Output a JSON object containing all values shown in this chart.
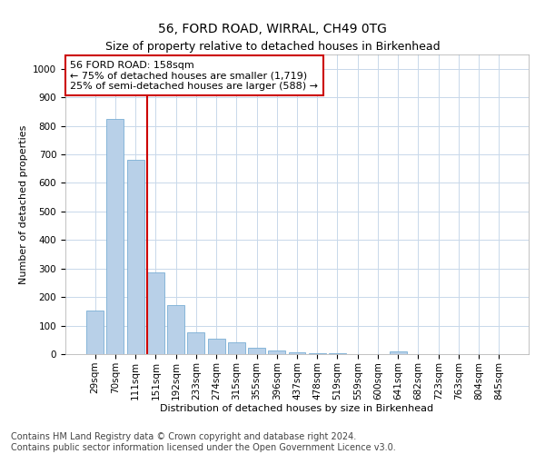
{
  "title": "56, FORD ROAD, WIRRAL, CH49 0TG",
  "subtitle": "Size of property relative to detached houses in Birkenhead",
  "xlabel": "Distribution of detached houses by size in Birkenhead",
  "ylabel": "Number of detached properties",
  "bin_labels": [
    "29sqm",
    "70sqm",
    "111sqm",
    "151sqm",
    "192sqm",
    "233sqm",
    "274sqm",
    "315sqm",
    "355sqm",
    "396sqm",
    "437sqm",
    "478sqm",
    "519sqm",
    "559sqm",
    "600sqm",
    "641sqm",
    "682sqm",
    "723sqm",
    "763sqm",
    "804sqm",
    "845sqm"
  ],
  "bar_values": [
    152,
    825,
    680,
    285,
    173,
    77,
    53,
    42,
    23,
    13,
    6,
    4,
    2,
    1,
    0,
    11,
    0,
    0,
    0,
    0,
    0
  ],
  "bar_color": "#b8d0e8",
  "bar_edge_color": "#7aaed4",
  "vline_x_index": 3,
  "vline_color": "#cc0000",
  "annotation_line1": "56 FORD ROAD: 158sqm",
  "annotation_line2": "← 75% of detached houses are smaller (1,719)",
  "annotation_line3": "25% of semi-detached houses are larger (588) →",
  "annotation_box_color": "#ffffff",
  "annotation_box_edge": "#cc0000",
  "ylim": [
    0,
    1050
  ],
  "yticks": [
    0,
    100,
    200,
    300,
    400,
    500,
    600,
    700,
    800,
    900,
    1000
  ],
  "background_color": "#ffffff",
  "grid_color": "#c8d8ea",
  "footer_text": "Contains HM Land Registry data © Crown copyright and database right 2024.\nContains public sector information licensed under the Open Government Licence v3.0.",
  "title_fontsize": 10,
  "ylabel_fontsize": 8,
  "xlabel_fontsize": 8,
  "annotation_fontsize": 8,
  "footer_fontsize": 7,
  "tick_fontsize": 7.5
}
